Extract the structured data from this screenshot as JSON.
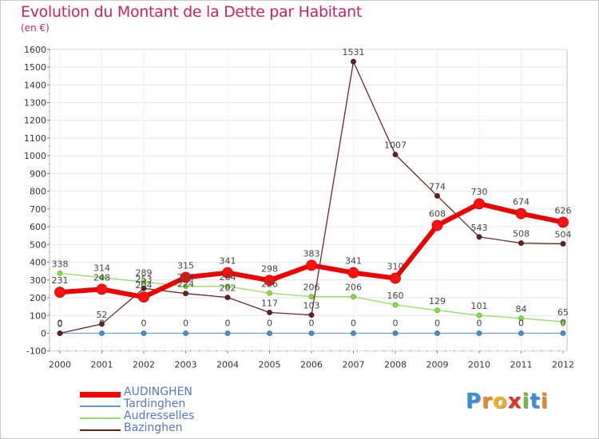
{
  "header": {
    "title": "Evolution du Montant de la Dette par Habitant",
    "unit": "(en €)"
  },
  "brand": {
    "chars": [
      "P",
      "r",
      "o",
      "x",
      "i",
      "t",
      "i"
    ]
  },
  "chart_data": {
    "type": "line",
    "title": "Evolution du Montant de la Dette par Habitant",
    "ylabel": "(en €)",
    "ylim": [
      -100,
      1600
    ],
    "yticks": [
      -100,
      0,
      100,
      200,
      300,
      400,
      500,
      600,
      700,
      800,
      900,
      1000,
      1100,
      1200,
      1300,
      1400,
      1500,
      1600
    ],
    "categories": [
      "2000",
      "2001",
      "2002",
      "2003",
      "2004",
      "2005",
      "2006",
      "2007",
      "2008",
      "2009",
      "2010",
      "2011",
      "2012"
    ],
    "legend_position": "bottom-left",
    "series": [
      {
        "name": "AUDINGHEN",
        "color": "#ff0000",
        "values": [
          231,
          248,
          204,
          315,
          341,
          298,
          383,
          341,
          310,
          608,
          730,
          674,
          626
        ]
      },
      {
        "name": "Tardinghen",
        "color": "#6699cc",
        "values": [
          0,
          0,
          0,
          0,
          0,
          0,
          0,
          0,
          0,
          0,
          0,
          0,
          0
        ]
      },
      {
        "name": "Audresselles",
        "color": "#99dd66",
        "values": [
          338,
          314,
          289,
          264,
          264,
          226,
          206,
          206,
          160,
          129,
          101,
          84,
          65
        ]
      },
      {
        "name": "Bazinghen",
        "color": "#662222",
        "values": [
          0,
          52,
          253,
          224,
          202,
          117,
          103,
          1531,
          1007,
          774,
          543,
          508,
          504
        ]
      }
    ]
  }
}
